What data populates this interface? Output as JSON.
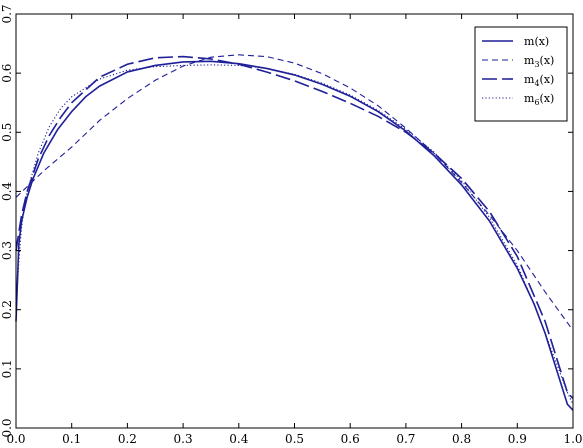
{
  "chart_data": {
    "type": "line",
    "title": "",
    "xlabel": "",
    "ylabel": "",
    "xlim": [
      0.0,
      1.0
    ],
    "ylim": [
      0.0,
      0.7
    ],
    "x_ticks": [
      "0.0",
      "0.1",
      "0.2",
      "0.3",
      "0.4",
      "0.5",
      "0.6",
      "0.7",
      "0.8",
      "0.9",
      "1.0"
    ],
    "y_ticks": [
      "0.0",
      "0.1",
      "0.2",
      "0.3",
      "0.4",
      "0.5",
      "0.6",
      "0.7"
    ],
    "grid": false,
    "legend_position": "top-right",
    "line_color": "#1f1f99",
    "series": [
      {
        "name": "m(x)",
        "style": "solid",
        "x": [
          0.0,
          0.005,
          0.01,
          0.02,
          0.03,
          0.05,
          0.075,
          0.1,
          0.125,
          0.15,
          0.2,
          0.25,
          0.3,
          0.35,
          0.4,
          0.45,
          0.5,
          0.55,
          0.6,
          0.65,
          0.7,
          0.75,
          0.8,
          0.85,
          0.9,
          0.93,
          0.95,
          0.97,
          0.98,
          0.99,
          1.0
        ],
        "y": [
          0.18,
          0.31,
          0.35,
          0.39,
          0.42,
          0.465,
          0.505,
          0.535,
          0.56,
          0.578,
          0.602,
          0.613,
          0.619,
          0.62,
          0.616,
          0.608,
          0.597,
          0.581,
          0.561,
          0.535,
          0.502,
          0.461,
          0.411,
          0.35,
          0.27,
          0.21,
          0.16,
          0.1,
          0.07,
          0.04,
          0.03
        ]
      },
      {
        "name": "m3(x)",
        "style": "short-dash",
        "x": [
          0.0,
          0.05,
          0.1,
          0.15,
          0.2,
          0.25,
          0.3,
          0.35,
          0.4,
          0.45,
          0.5,
          0.55,
          0.6,
          0.65,
          0.7,
          0.75,
          0.8,
          0.85,
          0.9,
          0.95,
          1.0
        ],
        "y": [
          0.39,
          0.435,
          0.475,
          0.52,
          0.557,
          0.588,
          0.612,
          0.627,
          0.631,
          0.628,
          0.617,
          0.599,
          0.575,
          0.545,
          0.507,
          0.465,
          0.415,
          0.36,
          0.3,
          0.23,
          0.165
        ]
      },
      {
        "name": "m4(x)",
        "style": "long-dash",
        "x": [
          0.0,
          0.005,
          0.01,
          0.02,
          0.04,
          0.06,
          0.08,
          0.1,
          0.15,
          0.2,
          0.25,
          0.3,
          0.35,
          0.4,
          0.45,
          0.5,
          0.55,
          0.6,
          0.65,
          0.7,
          0.75,
          0.8,
          0.85,
          0.9,
          0.95,
          0.97,
          0.99,
          1.0
        ],
        "y": [
          0.3,
          0.33,
          0.36,
          0.4,
          0.455,
          0.495,
          0.525,
          0.55,
          0.593,
          0.615,
          0.626,
          0.628,
          0.624,
          0.615,
          0.602,
          0.587,
          0.569,
          0.549,
          0.527,
          0.5,
          0.465,
          0.422,
          0.366,
          0.29,
          0.18,
          0.12,
          0.06,
          0.05
        ]
      },
      {
        "name": "m6(x)",
        "style": "dotted",
        "x": [
          0.0,
          0.005,
          0.01,
          0.02,
          0.04,
          0.06,
          0.08,
          0.1,
          0.15,
          0.2,
          0.25,
          0.3,
          0.35,
          0.4,
          0.45,
          0.5,
          0.55,
          0.6,
          0.65,
          0.7,
          0.75,
          0.8,
          0.85,
          0.9,
          0.93,
          0.95,
          0.97,
          0.99,
          1.0
        ],
        "y": [
          0.2,
          0.28,
          0.34,
          0.4,
          0.465,
          0.51,
          0.54,
          0.56,
          0.59,
          0.605,
          0.611,
          0.613,
          0.614,
          0.613,
          0.608,
          0.598,
          0.583,
          0.563,
          0.537,
          0.505,
          0.467,
          0.418,
          0.356,
          0.275,
          0.21,
          0.16,
          0.11,
          0.06,
          0.04
        ]
      }
    ],
    "legend_entries": [
      {
        "base": "m",
        "sub": "",
        "suffix": "(x)"
      },
      {
        "base": "m",
        "sub": "3",
        "suffix": "(x)"
      },
      {
        "base": "m",
        "sub": "4",
        "suffix": "(x)"
      },
      {
        "base": "m",
        "sub": "6",
        "suffix": "(x)"
      }
    ]
  }
}
